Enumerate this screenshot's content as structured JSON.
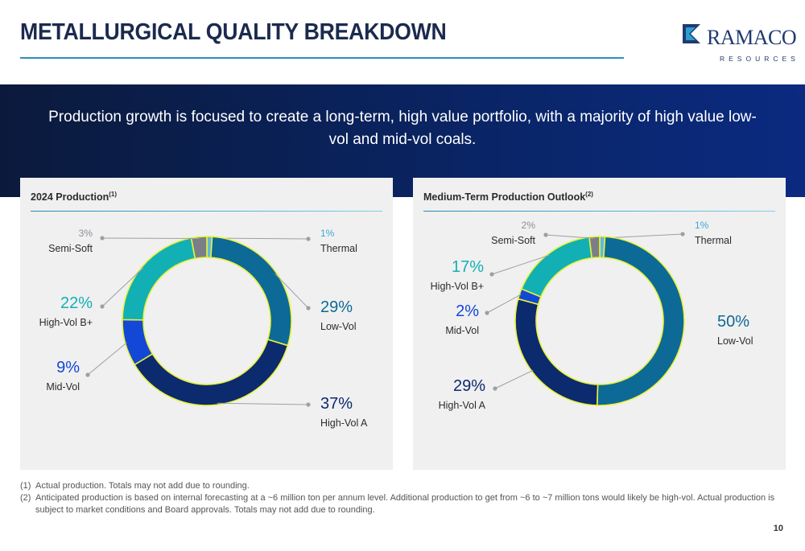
{
  "page": {
    "title": "METALLURGICAL QUALITY BREAKDOWN",
    "banner": "Production growth is focused to create a long-term, high value portfolio, with a majority of high value low-vol and mid-vol coals.",
    "logo_name": "RAMACO",
    "logo_sub": "RESOURCES",
    "page_number": "10",
    "footnotes": [
      {
        "num": "(1)",
        "text": "Actual production. Totals may not add due to rounding."
      },
      {
        "num": "(2)",
        "text": "Anticipated production is based on internal forecasting at a ~6 million ton per annum level. Additional production to get from ~6 to ~7 million tons would likely be high-vol.  Actual production is subject to market conditions and Board approvals.  Totals may not add due to rounding."
      }
    ],
    "colors": {
      "accent": "#2a8fc0",
      "navy": "#1b2a4e",
      "highlight": "#e8f23a"
    }
  },
  "chart_data": [
    {
      "type": "pie",
      "title": "2024 Production",
      "title_sup": "(1)",
      "slices": [
        {
          "label": "Thermal",
          "value": 1,
          "value_label": "1%",
          "color": "#5fb9e0"
        },
        {
          "label": "Low-Vol",
          "value": 29,
          "value_label": "29%",
          "color": "#0d6a96"
        },
        {
          "label": "High-Vol A",
          "value": 37,
          "value_label": "37%",
          "color": "#0c2a6e"
        },
        {
          "label": "Mid-Vol",
          "value": 9,
          "value_label": "9%",
          "color": "#1347d6"
        },
        {
          "label": "High-Vol B+",
          "value": 22,
          "value_label": "22%",
          "color": "#12b0b4"
        },
        {
          "label": "Semi-Soft",
          "value": 3,
          "value_label": "3%",
          "color": "#7a7f86"
        }
      ]
    },
    {
      "type": "pie",
      "title": "Medium-Term Production Outlook",
      "title_sup": "(2)",
      "slices": [
        {
          "label": "Thermal",
          "value": 1,
          "value_label": "1%",
          "color": "#5fb9e0"
        },
        {
          "label": "Low-Vol",
          "value": 50,
          "value_label": "50%",
          "color": "#0d6a96"
        },
        {
          "label": "High-Vol A",
          "value": 29,
          "value_label": "29%",
          "color": "#0c2a6e"
        },
        {
          "label": "Mid-Vol",
          "value": 2,
          "value_label": "2%",
          "color": "#1347d6"
        },
        {
          "label": "High-Vol B+",
          "value": 17,
          "value_label": "17%",
          "color": "#12b0b4"
        },
        {
          "label": "Semi-Soft",
          "value": 2,
          "value_label": "2%",
          "color": "#7a7f86"
        }
      ]
    }
  ]
}
